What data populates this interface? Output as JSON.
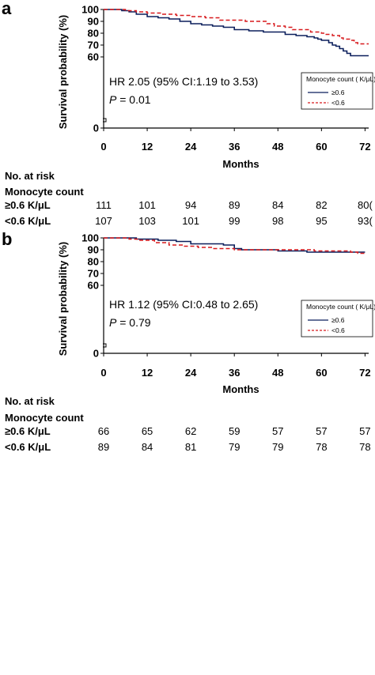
{
  "chart_data": [
    {
      "panel": "a",
      "type": "line",
      "ylabel": "Survival probability (%)",
      "xlabel": "Months",
      "x_ticks": [
        0,
        12,
        24,
        36,
        48,
        60,
        72
      ],
      "y_ticks": [
        0,
        60,
        70,
        80,
        90,
        100
      ],
      "xlim": [
        0,
        73
      ],
      "ylim": [
        0,
        100
      ],
      "y_axis_break": true,
      "annotation_hr": "HR 2.05 (95% CI:1.19 to 3.53)",
      "annotation_p_label": "P",
      "annotation_p_value": " = 0.01",
      "legend_title": "Monocyte count ( K/μL)",
      "legend_placement": "right",
      "series": [
        {
          "name": "≥0.6",
          "color": "#0b1f5c",
          "dash": false,
          "points": [
            [
              0,
              100
            ],
            [
              3,
              100
            ],
            [
              5,
              99
            ],
            [
              7,
              98
            ],
            [
              9,
              96
            ],
            [
              12,
              94
            ],
            [
              15,
              93
            ],
            [
              18,
              92
            ],
            [
              21,
              90
            ],
            [
              24,
              88
            ],
            [
              27,
              87
            ],
            [
              30,
              86
            ],
            [
              33,
              85
            ],
            [
              36,
              83
            ],
            [
              40,
              82
            ],
            [
              44,
              81
            ],
            [
              46,
              81
            ],
            [
              50,
              79
            ],
            [
              53,
              78
            ],
            [
              56,
              77
            ],
            [
              58,
              76
            ],
            [
              59,
              75
            ],
            [
              60,
              74
            ],
            [
              62,
              72
            ],
            [
              63,
              70
            ],
            [
              64,
              69
            ],
            [
              65,
              67
            ],
            [
              66,
              65
            ],
            [
              67,
              63
            ],
            [
              68,
              61
            ],
            [
              73,
              61
            ]
          ]
        },
        {
          "name": "<0.6",
          "color": "#d7191c",
          "dash": true,
          "points": [
            [
              0,
              100
            ],
            [
              4,
              100
            ],
            [
              6,
              99
            ],
            [
              9,
              98
            ],
            [
              12,
              97
            ],
            [
              16,
              96
            ],
            [
              20,
              95
            ],
            [
              24,
              94
            ],
            [
              28,
              93
            ],
            [
              32,
              91
            ],
            [
              36,
              91
            ],
            [
              39,
              90
            ],
            [
              42,
              90
            ],
            [
              45,
              88
            ],
            [
              47,
              86
            ],
            [
              50,
              85
            ],
            [
              52,
              83
            ],
            [
              55,
              83
            ],
            [
              57,
              81
            ],
            [
              60,
              80
            ],
            [
              61,
              79
            ],
            [
              63,
              78
            ],
            [
              65,
              76
            ],
            [
              66,
              75
            ],
            [
              68,
              74
            ],
            [
              69,
              72
            ],
            [
              70,
              71
            ],
            [
              73,
              71
            ]
          ]
        }
      ],
      "at_risk": {
        "header": "No. at risk",
        "subheader": "Monocyte count",
        "rows": [
          {
            "label": "≥0.6 K/μL",
            "values": [
              "111",
              "101",
              "94",
              "89",
              "84",
              "82",
              "80("
            ]
          },
          {
            "label": "<0.6 K/μL",
            "values": [
              "107",
              "103",
              "101",
              "99",
              "98",
              "95",
              "93("
            ]
          }
        ]
      }
    },
    {
      "panel": "b",
      "type": "line",
      "ylabel": "Survival probability (%)",
      "xlabel": "Months",
      "x_ticks": [
        0,
        12,
        24,
        36,
        48,
        60,
        72
      ],
      "y_ticks": [
        0,
        60,
        70,
        80,
        90,
        100
      ],
      "xlim": [
        0,
        73
      ],
      "ylim": [
        0,
        100
      ],
      "y_axis_break": true,
      "annotation_hr": "HR 1.12 (95% CI:0.48 to 2.65)",
      "annotation_p_label": "P",
      "annotation_p_value": " = 0.79",
      "legend_title": "Monocyte count ( K/μL)",
      "legend_placement": "right",
      "series": [
        {
          "name": "≥0.6",
          "color": "#0b1f5c",
          "dash": false,
          "points": [
            [
              0,
              100
            ],
            [
              6,
              100
            ],
            [
              9,
              99
            ],
            [
              12,
              99
            ],
            [
              15,
              98
            ],
            [
              20,
              97
            ],
            [
              24,
              95
            ],
            [
              30,
              95
            ],
            [
              33,
              94
            ],
            [
              36,
              91
            ],
            [
              38,
              90
            ],
            [
              42,
              90
            ],
            [
              48,
              89
            ],
            [
              56,
              88
            ],
            [
              66,
              88
            ],
            [
              72,
              88
            ]
          ]
        },
        {
          "name": "<0.6",
          "color": "#d7191c",
          "dash": true,
          "points": [
            [
              0,
              100
            ],
            [
              4,
              100
            ],
            [
              7,
              99
            ],
            [
              10,
              98
            ],
            [
              14,
              96
            ],
            [
              18,
              94
            ],
            [
              22,
              93
            ],
            [
              26,
              92
            ],
            [
              30,
              91
            ],
            [
              34,
              91
            ],
            [
              36,
              90
            ],
            [
              40,
              90
            ],
            [
              46,
              90
            ],
            [
              52,
              90
            ],
            [
              58,
              89
            ],
            [
              64,
              89
            ],
            [
              68,
              88
            ],
            [
              70,
              87
            ],
            [
              72,
              86
            ]
          ]
        }
      ],
      "at_risk": {
        "header": "No. at risk",
        "subheader": "Monocyte count",
        "rows": [
          {
            "label": "≥0.6 K/μL",
            "values": [
              "66",
              "65",
              "62",
              "59",
              "57",
              "57",
              "57"
            ]
          },
          {
            "label": "<0.6 K/μL",
            "values": [
              "89",
              "84",
              "81",
              "79",
              "79",
              "78",
              "78"
            ]
          }
        ]
      }
    }
  ]
}
